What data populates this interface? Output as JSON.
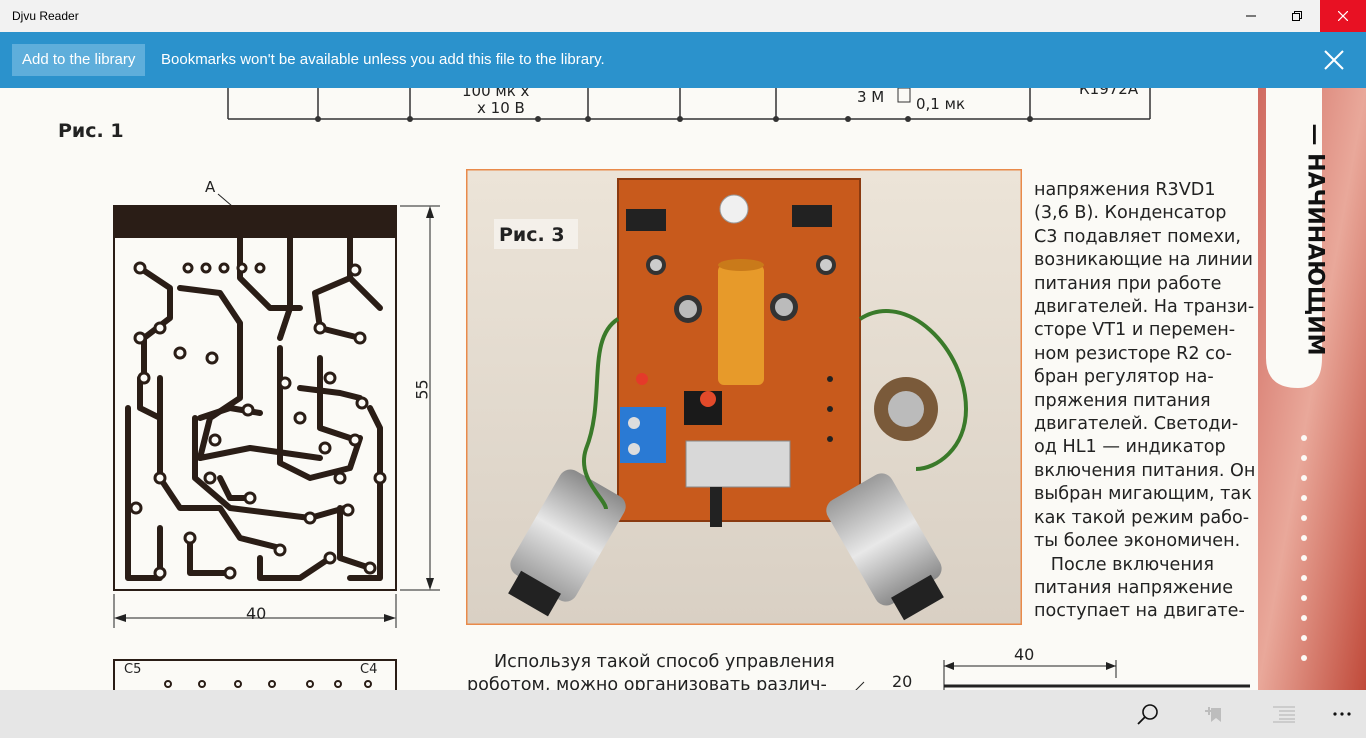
{
  "window": {
    "title": "Djvu Reader"
  },
  "infobar": {
    "add_button_label": "Add to the library",
    "message": "Bookmarks won't be available unless you add this file to the library."
  },
  "page": {
    "top_labels": {
      "cap_top": "100 мк х",
      "cap_bottom": "х 10 В",
      "res": "3 М",
      "cap2": "0,1 мк",
      "chip": "К1972А"
    },
    "fig1_label": "Рис. 1",
    "fig3_label": "Рис. 3",
    "fig1_point": "А",
    "dim_height": "55",
    "dim_width": "40",
    "dim_width2": "40",
    "dim_height2": "20",
    "c5": "C5",
    "c4": "C4",
    "side_heading": "— НАЧИНАЮЩИМ",
    "body_lines": [
      "напряжения R3VD1",
      "(3,6 В). Конденсатор",
      "С3 подавляет помехи,",
      "возникающие на линии",
      "питания при работе",
      "двигателей. На транзи-",
      "сторе VT1 и перемен-",
      "ном резисторе R2 со-",
      "бран регулятор на-",
      "пряжения питания",
      "двигателей. Светоди-",
      "од HL1 — индикатор",
      "включения питания. Он",
      "выбран мигающим, так",
      "как такой режим рабо-",
      "ты более экономичен.",
      "   После включения",
      "питания напряжение",
      "поступает на двигате-"
    ],
    "lower_line1": "Используя такой способ управления",
    "lower_line2": "роботом, можно организовать различ-"
  },
  "bottombar": {
    "icons": [
      "search-icon",
      "add-bookmark-icon",
      "contents-icon",
      "more-icon"
    ]
  }
}
